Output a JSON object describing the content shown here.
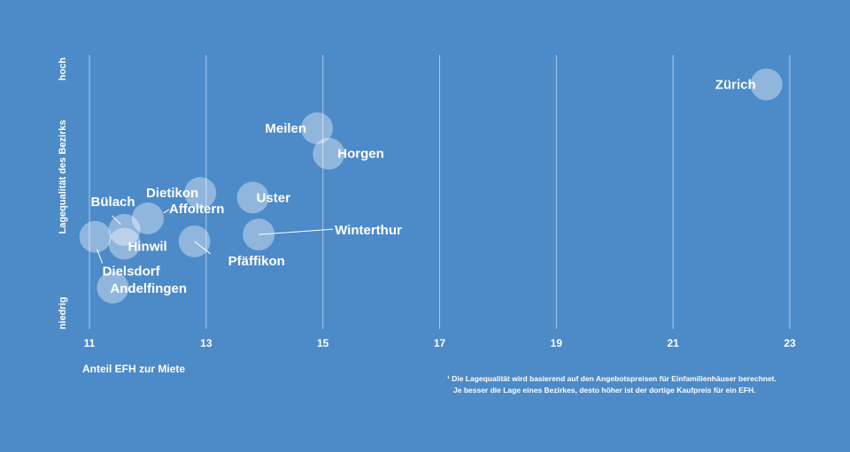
{
  "colors": {
    "background": "#4d8ac8",
    "bubble": "#ffffff",
    "grid": "#ffffff",
    "text": "#ffffff"
  },
  "chart_data": {
    "type": "scatter",
    "xlabel": "Anteil EFH zur Miete",
    "ylabel": "Lagequalität des Bezirks",
    "ylabel_high": "hoch",
    "ylabel_low": "niedrig",
    "xlim": [
      11,
      23
    ],
    "xticks": [
      11,
      13,
      15,
      17,
      19,
      21,
      23
    ],
    "grid": true,
    "y_scale": "qualitative (niedrig to hoch), values normalized 0-1",
    "points": [
      {
        "label": "Zürich",
        "x": 22.6,
        "y": 0.96
      },
      {
        "label": "Meilen",
        "x": 14.9,
        "y": 0.77
      },
      {
        "label": "Horgen",
        "x": 15.1,
        "y": 0.66
      },
      {
        "label": "Dietikon",
        "x": 12.9,
        "y": 0.49
      },
      {
        "label": "Uster",
        "x": 13.8,
        "y": 0.47
      },
      {
        "label": "Affoltern",
        "x": 12.0,
        "y": 0.38
      },
      {
        "label": "Bülach",
        "x": 11.6,
        "y": 0.33
      },
      {
        "label": "Winterthur",
        "x": 13.9,
        "y": 0.31
      },
      {
        "label": "Pfäffikon",
        "x": 12.8,
        "y": 0.28
      },
      {
        "label": "Dielsdorf",
        "x": 11.1,
        "y": 0.3
      },
      {
        "label": "Hinwil",
        "x": 11.6,
        "y": 0.27
      },
      {
        "label": "Andelfingen",
        "x": 11.4,
        "y": 0.08
      }
    ],
    "footnote_lines": [
      "¹ Die Lagequalität wird basierend auf den Angebotspreisen für Einfamilienhäuser berechnet.",
      "Je besser die Lage eines Bezirkes, desto höher ist der dortige Kaufpreis für ein EFH."
    ]
  }
}
